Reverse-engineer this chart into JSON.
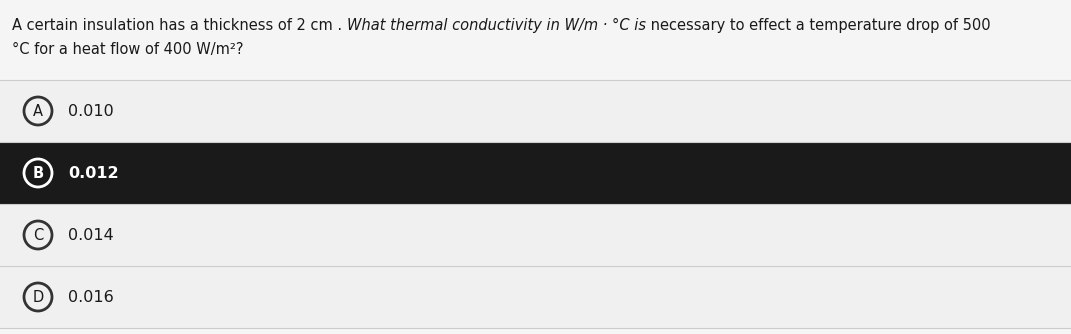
{
  "question_part1": "A certain insulation has a thickness of 2 cm . ",
  "question_italic": "What thermal conductivity in W/m · °C is",
  "question_part2": " necessary to effect a temperature drop of 500",
  "question_line2": "°C for a heat flow of 400 W/m²?",
  "options": [
    {
      "label": "A",
      "text": "0.010",
      "selected": false
    },
    {
      "label": "B",
      "text": "0.012",
      "selected": true
    },
    {
      "label": "C",
      "text": "0.014",
      "selected": false
    },
    {
      "label": "D",
      "text": "0.016",
      "selected": false
    }
  ],
  "bg_color": "#f5f5f5",
  "option_bg_normal": "#f0f0f0",
  "option_bg_selected": "#1a1a1a",
  "option_text_normal": "#1a1a1a",
  "option_text_selected": "#ffffff",
  "circle_border_normal": "#333333",
  "circle_border_selected": "#ffffff",
  "question_text_color": "#1a1a1a",
  "separator_color": "#cccccc",
  "fig_width": 10.71,
  "fig_height": 3.34,
  "dpi": 100,
  "question_fontsize": 10.5,
  "option_fontsize": 11.5,
  "label_fontsize": 10.5
}
